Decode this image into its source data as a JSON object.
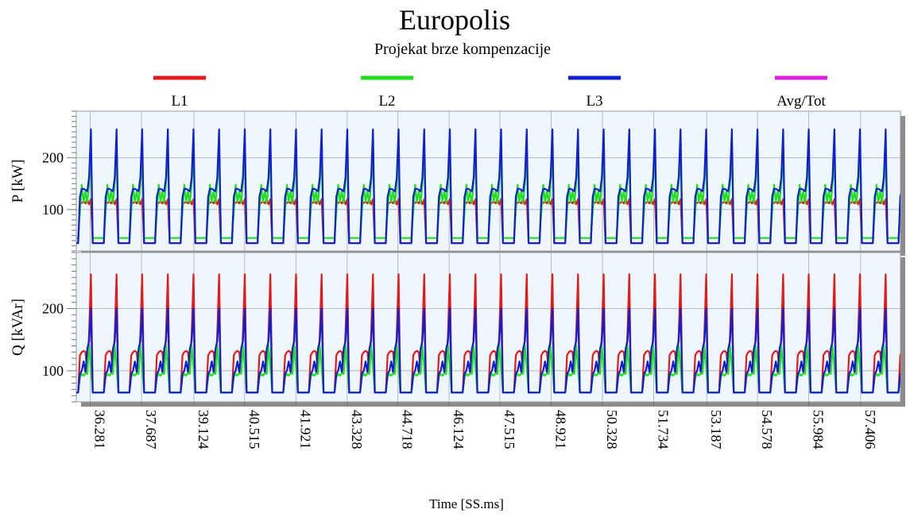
{
  "colors": {
    "L1": "#e31a1c",
    "L2": "#22dd22",
    "L3": "#1020d0",
    "Avg/Tot": "#e020e0",
    "panel_bg": "#eef8fc",
    "grid": "#b9b9b9",
    "shadow": "#8c8c8c"
  },
  "chart_data": {
    "type": "line",
    "title": "Europolis",
    "subtitle": "Projekat brze kompenzacije",
    "xlabel": "Time [SS.ms]",
    "x_tick_labels": [
      "36.281",
      "37.687",
      "39.124",
      "40.515",
      "41.921",
      "43.328",
      "44.718",
      "46.124",
      "47.515",
      "48.921",
      "50.328",
      "51.734",
      "53.187",
      "54.578",
      "55.984",
      "57.406"
    ],
    "xlim": [
      35.9,
      58.5
    ],
    "grid": true,
    "legend_position": "top",
    "legend": [
      "L1",
      "L2",
      "L3",
      "Avg/Tot"
    ],
    "panels": [
      {
        "ylabel": "P [kW]",
        "y_ticks": [
          "100",
          "200"
        ],
        "ylim": [
          20,
          290
        ],
        "period": 0.703,
        "series": [
          {
            "name": "L1",
            "values": [
              35,
              35,
              110,
              113,
              115,
              112,
              120,
              110,
              120,
              35,
              35,
              35,
              35,
              35
            ]
          },
          {
            "name": "L2",
            "values": [
              45,
              45,
              95,
              148,
              115,
              135,
              112,
              150,
              210,
              45,
              45,
              45,
              45,
              45
            ]
          },
          {
            "name": "L3",
            "values": [
              35,
              35,
              125,
              140,
              140,
              138,
              135,
              162,
              255,
              35,
              35,
              35,
              35,
              35
            ]
          }
        ]
      },
      {
        "ylabel": "Q [kVAr]",
        "y_ticks": [
          "100",
          "200"
        ],
        "ylim": [
          50,
          290
        ],
        "period": 0.703,
        "series": [
          {
            "name": "L1",
            "values": [
              65,
              65,
              125,
              130,
              132,
              130,
              98,
              160,
              255,
              65,
              65,
              65,
              65,
              65
            ]
          },
          {
            "name": "L2",
            "values": [
              65,
              65,
              90,
              95,
              92,
              96,
              95,
              140,
              105,
              65,
              65,
              65,
              65,
              65
            ]
          },
          {
            "name": "L3",
            "values": [
              65,
              65,
              95,
              100,
              115,
              98,
              135,
              148,
              200,
              65,
              65,
              65,
              65,
              65
            ]
          }
        ]
      }
    ]
  }
}
